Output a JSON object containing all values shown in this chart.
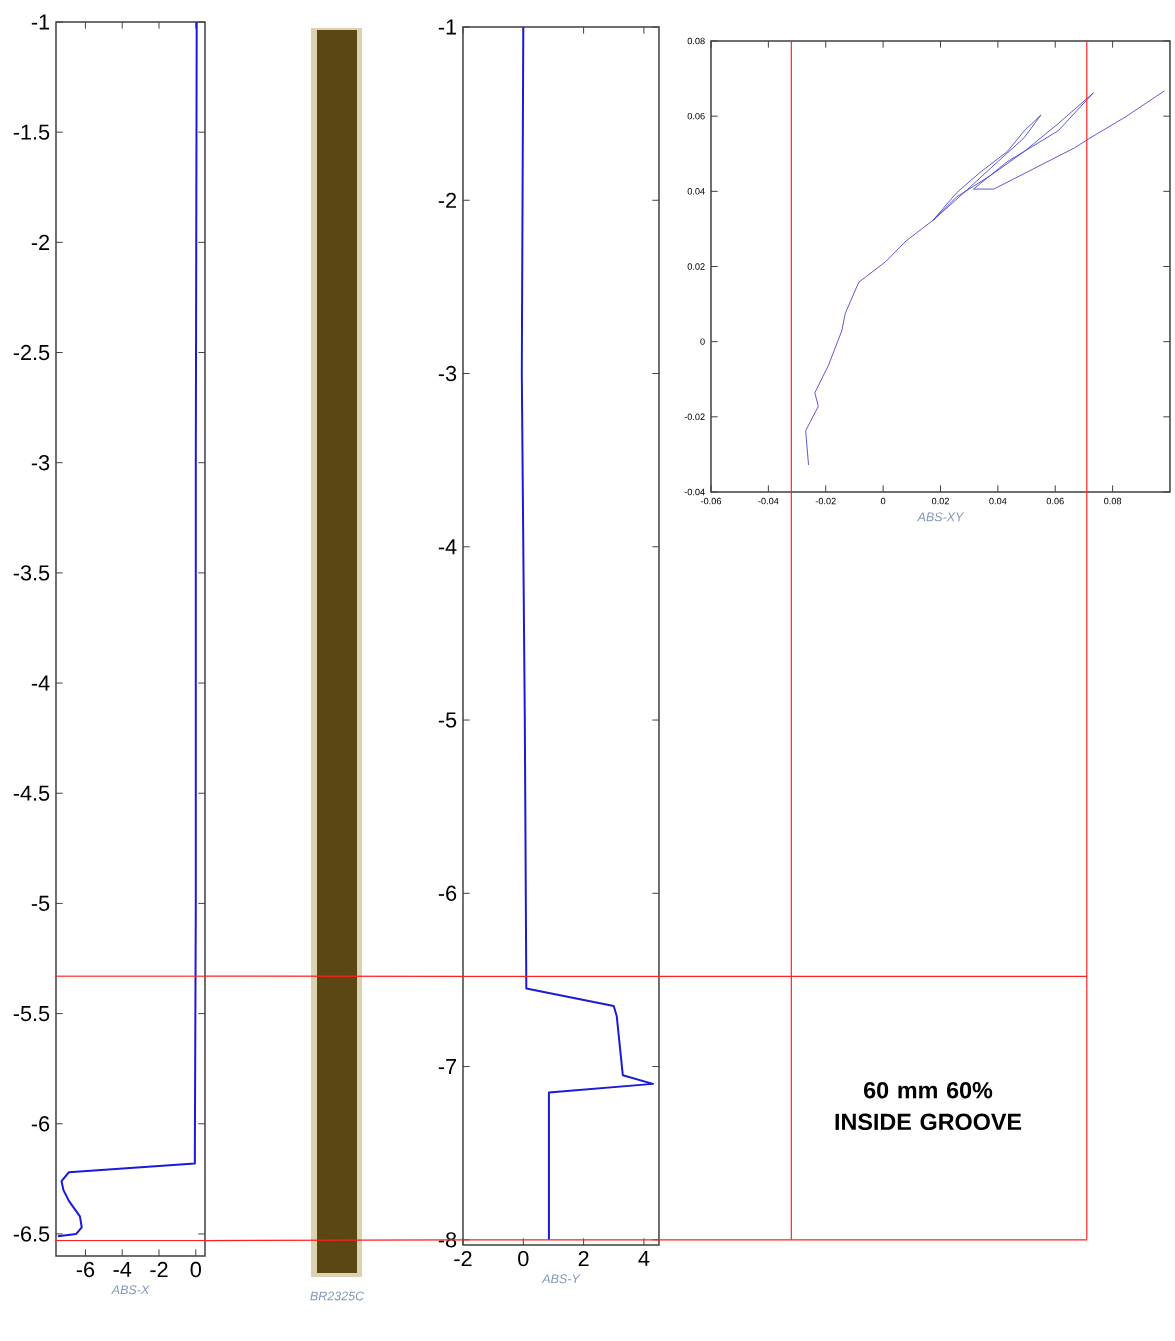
{
  "chart_data": [
    {
      "type": "line",
      "xlabel": "ABS-X",
      "xlim": [
        -7.6,
        0.5
      ],
      "ylim": [
        -6.6,
        -1
      ],
      "xticks": [
        -6,
        -4,
        -2,
        0
      ],
      "yticks": [
        -1,
        -1.5,
        -2,
        -2.5,
        -3,
        -3.5,
        -4,
        -4.5,
        -5,
        -5.5,
        -6,
        -6.5
      ],
      "series": [
        {
          "color": "#1a1ad8",
          "x": [
            0.05,
            0.0,
            0.0,
            -0.05,
            -0.05,
            -6.9,
            -7.3,
            -7.2,
            -6.9,
            -6.3,
            -6.2,
            -6.5,
            -7.5
          ],
          "values": [
            -1,
            -3,
            -5,
            -6.1,
            -6.18,
            -6.22,
            -6.26,
            -6.3,
            -6.35,
            -6.42,
            -6.47,
            -6.5,
            -6.51
          ]
        }
      ],
      "ref_lines": [
        {
          "axis": "y",
          "value": -5.33,
          "color": "#ff2020"
        },
        {
          "axis": "y",
          "value": -6.53,
          "color": "#ff2020"
        }
      ]
    },
    {
      "type": "line",
      "xlabel": "ABS-Y",
      "xlim": [
        -2,
        4.5
      ],
      "ylim": [
        -8.03,
        -1
      ],
      "xticks": [
        -2,
        0,
        2,
        4
      ],
      "yticks": [
        -1,
        -2,
        -3,
        -4,
        -5,
        -6,
        -7,
        -8
      ],
      "series": [
        {
          "color": "#1a1ad8",
          "x": [
            0,
            -0.05,
            0.05,
            0.1,
            3.0,
            3.1,
            3.3,
            4.3,
            0.85,
            0.85
          ],
          "values": [
            -1,
            -3,
            -5,
            -6.55,
            -6.65,
            -6.71,
            -7.05,
            -7.1,
            -7.15,
            -8
          ]
        }
      ],
      "ref_lines": [
        {
          "axis": "y",
          "value": -6.48,
          "color": "#ff2020"
        },
        {
          "axis": "y",
          "value": -8,
          "color": "#ff2020"
        }
      ]
    },
    {
      "type": "line",
      "xlabel": "ABS-XY",
      "xlim": [
        -0.06,
        0.1
      ],
      "ylim": [
        -0.04,
        0.08
      ],
      "xticks": [
        -0.06,
        -0.04,
        -0.02,
        0,
        0.02,
        0.04,
        0.06,
        0.08
      ],
      "yticks": [
        -0.04,
        -0.02,
        0,
        0.02,
        0.04,
        0.06,
        0.08
      ],
      "series": [
        {
          "color": "#3a3ad0",
          "x": [
            -0.026,
            -0.027,
            -0.0226,
            -0.0238,
            -0.019,
            -0.0144,
            -0.0132,
            -0.0085,
            0.0009,
            0.008,
            0.0174,
            0.0256,
            0.0339,
            0.0433,
            0.0492,
            0.055,
            0.0492,
            0.0374,
            0.0268,
            0.0174,
            0.0256,
            0.0374,
            0.0492,
            0.061,
            0.0733,
            0.061,
            0.0433,
            0.0315,
            0.0386,
            0.0527,
            0.0668,
            0.0715,
            0.0845,
            0.098
          ],
          "values": [
            -0.0328,
            -0.0237,
            -0.0172,
            -0.0136,
            -0.0062,
            0.0029,
            0.0075,
            0.0158,
            0.0213,
            0.0268,
            0.0323,
            0.0396,
            0.0451,
            0.0506,
            0.0561,
            0.0603,
            0.0543,
            0.0461,
            0.0387,
            0.0323,
            0.0385,
            0.0442,
            0.0506,
            0.058,
            0.0662,
            0.0561,
            0.0479,
            0.0406,
            0.0406,
            0.0461,
            0.0516,
            0.0539,
            0.0598,
            0.0667
          ]
        }
      ],
      "ref_lines": [
        {
          "axis": "x",
          "value": -0.032,
          "color": "#ff2020"
        },
        {
          "axis": "x",
          "value": 0.071,
          "color": "#ff2020"
        }
      ]
    },
    {
      "type": "other",
      "annotations": [
        "BR2325C",
        "60 mm 60% INSIDE GROOVE"
      ]
    }
  ]
}
